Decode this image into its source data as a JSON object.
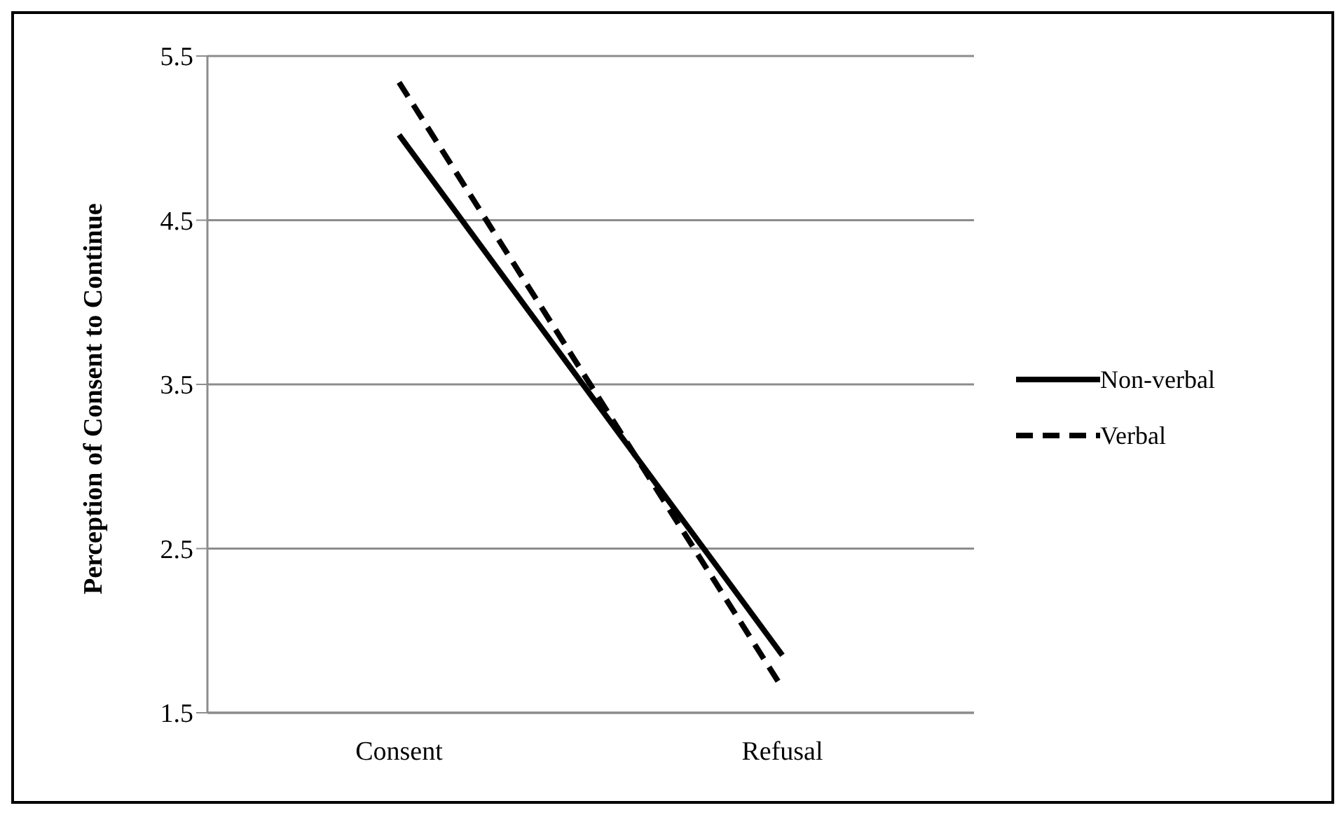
{
  "chart_data": {
    "type": "line",
    "ylabel": "Perception of Consent to Continue",
    "categories": [
      "Consent",
      "Refusal"
    ],
    "series": [
      {
        "name": "Non-verbal",
        "color": "#000000",
        "values": [
          5.02,
          1.85
        ],
        "line_style": "solid"
      },
      {
        "name": "Verbal",
        "color": "#000000",
        "values": [
          5.34,
          1.65
        ],
        "line_style": "dashed"
      }
    ],
    "ylim": [
      1.5,
      5.5
    ],
    "yticks": [
      1.5,
      2.5,
      3.5,
      4.5,
      5.5
    ],
    "grid": "y",
    "legend": "right",
    "marker": "none"
  }
}
